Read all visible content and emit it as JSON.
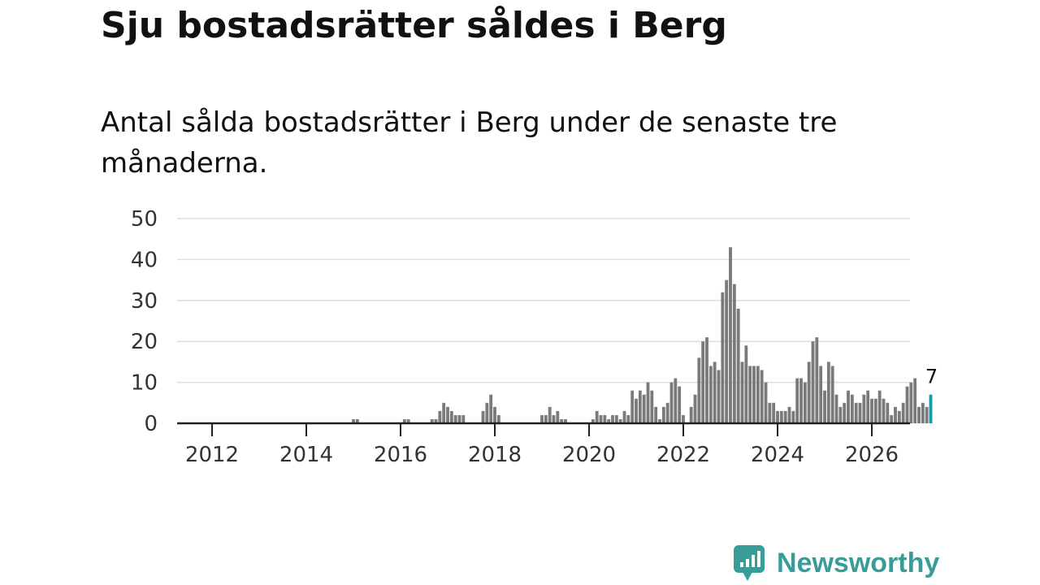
{
  "header": {
    "title": "Sju bostadsrätter såldes i Berg",
    "subtitle": "Antal sålda bostadsrätter i Berg under de senaste tre månaderna."
  },
  "brand": {
    "name": "Newsworthy",
    "icon": "newsworthy-logo-icon",
    "color": "#3a9c98"
  },
  "colors": {
    "bar": "#7a7a7a",
    "highlight": "#1a9aa0",
    "grid": "#dddddd",
    "axis": "#222222"
  },
  "chart_data": {
    "type": "bar",
    "title": "Sju bostadsrätter såldes i Berg",
    "xlabel": "",
    "ylabel": "",
    "ylim": [
      0,
      50
    ],
    "yticks": [
      0,
      10,
      20,
      30,
      40,
      50
    ],
    "xticks": [
      "2012",
      "2014",
      "2016",
      "2018",
      "2020",
      "2022",
      "2024",
      "2026"
    ],
    "start_year": 2011,
    "start_month": 4,
    "grid": true,
    "highlight_label": "7",
    "values": [
      0,
      0,
      0,
      0,
      0,
      0,
      0,
      0,
      0,
      0,
      0,
      0,
      0,
      0,
      0,
      0,
      0,
      0,
      0,
      0,
      0,
      0,
      0,
      0,
      0,
      0,
      0,
      0,
      0,
      0,
      0,
      0,
      0,
      0,
      0,
      0,
      0,
      0,
      0,
      0,
      0,
      0,
      0,
      0,
      1,
      1,
      0,
      0,
      0,
      0,
      0,
      0,
      0,
      0,
      0,
      0,
      0,
      1,
      1,
      0,
      0,
      0,
      0,
      0,
      1,
      1,
      3,
      5,
      4,
      3,
      2,
      2,
      2,
      0,
      0,
      0,
      0,
      3,
      5,
      7,
      4,
      2,
      0,
      0,
      0,
      0,
      0,
      0,
      0,
      0,
      0,
      0,
      2,
      2,
      4,
      2,
      3,
      1,
      1,
      0,
      0,
      0,
      0,
      0,
      0,
      1,
      3,
      2,
      2,
      1,
      2,
      2,
      1,
      3,
      2,
      8,
      6,
      8,
      7,
      10,
      8,
      4,
      1,
      4,
      5,
      10,
      11,
      9,
      2,
      0,
      4,
      7,
      16,
      20,
      21,
      14,
      15,
      13,
      32,
      35,
      43,
      34,
      28,
      15,
      19,
      14,
      14,
      14,
      13,
      10,
      5,
      5,
      3,
      3,
      3,
      4,
      3,
      11,
      11,
      10,
      15,
      20,
      21,
      14,
      8,
      15,
      14,
      7,
      4,
      5,
      8,
      7,
      5,
      5,
      7,
      8,
      6,
      6,
      8,
      6,
      5,
      2,
      4,
      3,
      5,
      9,
      10,
      11,
      4,
      5,
      4,
      7
    ]
  }
}
